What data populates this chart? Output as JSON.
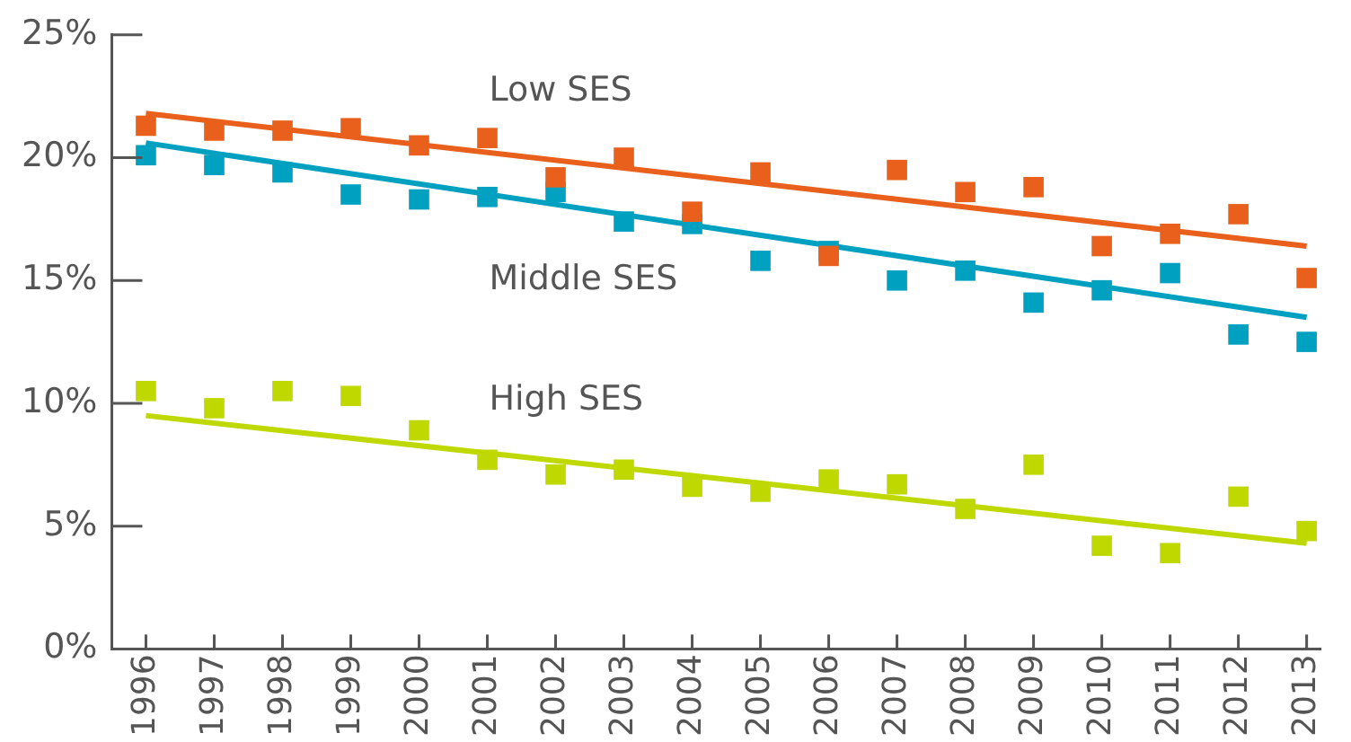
{
  "chart_data": {
    "type": "scatter",
    "x": [
      1996,
      1997,
      1998,
      1999,
      2000,
      2001,
      2002,
      2003,
      2004,
      2005,
      2006,
      2007,
      2008,
      2009,
      2010,
      2011,
      2012,
      2013
    ],
    "xlim": [
      1995.5,
      2013.2
    ],
    "xticks": [
      1996,
      1997,
      1998,
      1999,
      2000,
      2001,
      2002,
      2003,
      2004,
      2005,
      2006,
      2007,
      2008,
      2009,
      2010,
      2011,
      2012,
      2013
    ],
    "ylim": [
      0,
      25
    ],
    "yticks": [
      {
        "value": 0,
        "label": "0%"
      },
      {
        "value": 5,
        "label": "5%"
      },
      {
        "value": 10,
        "label": "10%"
      },
      {
        "value": 15,
        "label": "15%"
      },
      {
        "value": 20,
        "label": "20%"
      },
      {
        "value": 25,
        "label": "25%"
      }
    ],
    "grid": false,
    "legend": false,
    "marker": "square",
    "series": [
      {
        "name": "Low SES",
        "color": "#e8601c",
        "values": [
          21.3,
          21.1,
          21.1,
          21.2,
          20.5,
          20.8,
          19.2,
          20.0,
          17.8,
          19.4,
          16.0,
          19.5,
          18.6,
          18.8,
          16.4,
          16.9,
          17.7,
          15.1
        ]
      },
      {
        "name": "Middle SES",
        "color": "#00a0c0",
        "values": [
          20.1,
          19.7,
          19.4,
          18.5,
          18.3,
          18.4,
          18.6,
          17.4,
          17.3,
          15.8,
          16.2,
          15.0,
          15.4,
          14.1,
          14.6,
          15.3,
          12.8,
          12.5
        ]
      },
      {
        "name": "High SES",
        "color": "#bfd900",
        "values": [
          10.5,
          9.8,
          10.5,
          10.3,
          8.9,
          7.7,
          7.1,
          7.3,
          6.6,
          6.4,
          6.9,
          6.7,
          5.7,
          7.5,
          4.2,
          3.9,
          6.2,
          4.8
        ]
      },
      {
        "type": "line",
        "marker": "none",
        "color": "#e8601c",
        "values": [
          21.8,
          null,
          null,
          null,
          null,
          null,
          null,
          null,
          null,
          null,
          null,
          null,
          null,
          null,
          null,
          null,
          null,
          16.4
        ]
      },
      {
        "type": "line",
        "marker": "none",
        "color": "#00a0c0",
        "values": [
          20.6,
          null,
          null,
          null,
          null,
          null,
          null,
          null,
          null,
          null,
          null,
          null,
          null,
          null,
          null,
          null,
          null,
          13.5
        ]
      },
      {
        "type": "line",
        "marker": "none",
        "color": "#bfd900",
        "values": [
          9.5,
          null,
          null,
          null,
          null,
          null,
          null,
          null,
          null,
          null,
          null,
          null,
          null,
          null,
          null,
          null,
          null,
          4.3
        ]
      }
    ]
  }
}
